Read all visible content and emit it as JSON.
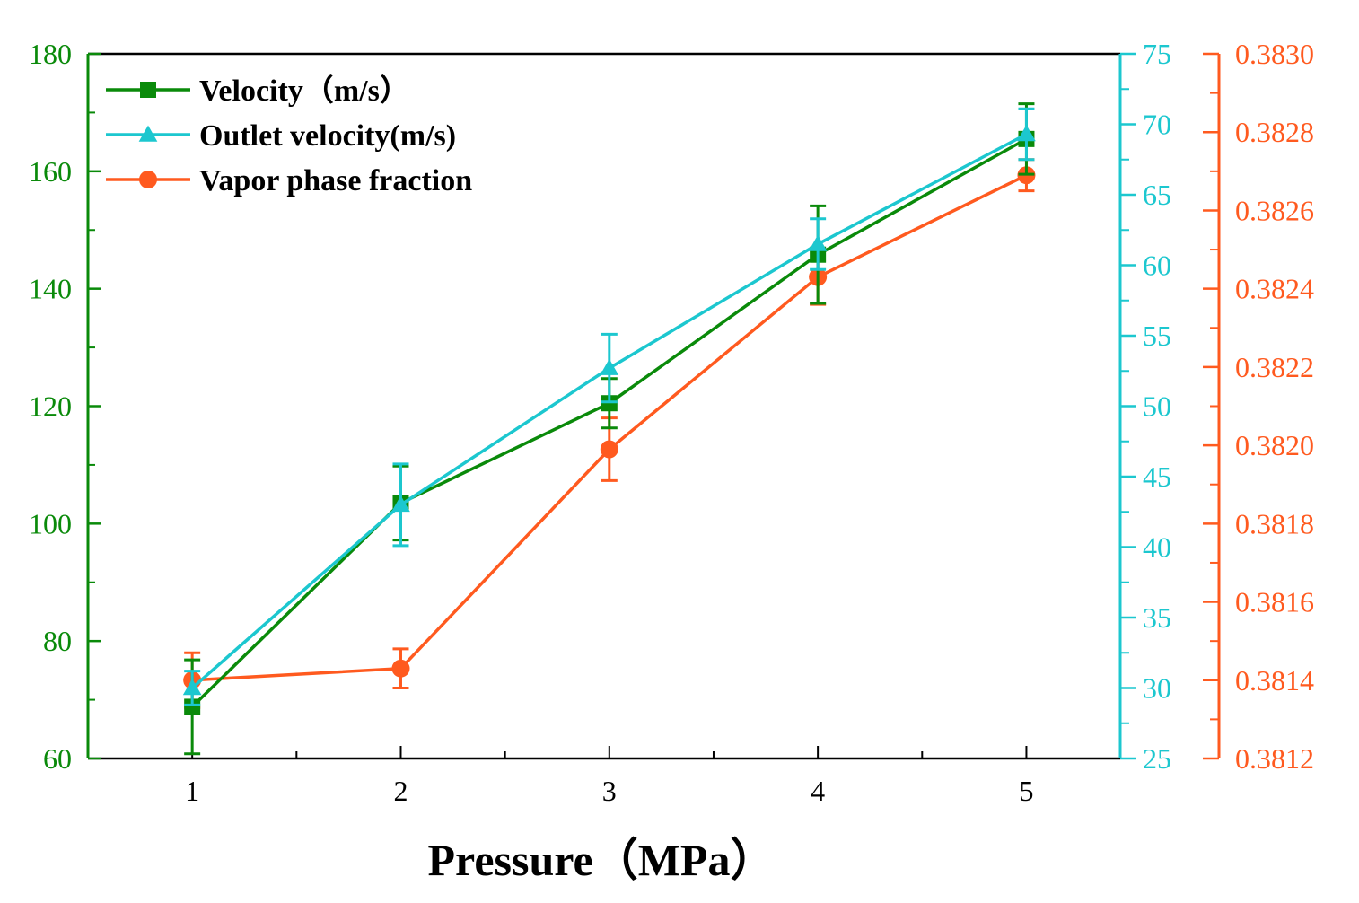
{
  "chart_data": {
    "type": "line",
    "title": "",
    "xlabel": "Pressure（MPa）",
    "x": [
      1,
      2,
      3,
      4,
      5
    ],
    "xlim": [
      0.5,
      5.45
    ],
    "x_ticks": [
      "1",
      "2",
      "3",
      "4",
      "5"
    ],
    "series": [
      {
        "name": "Velocity（m/s）",
        "axis": "left",
        "marker": "square",
        "color": "#0a8a0a",
        "values": [
          68.8,
          103.5,
          120.5,
          145.8,
          165.5
        ],
        "error": [
          8.0,
          6.3,
          4.2,
          8.3,
          6.0
        ]
      },
      {
        "name": "Outlet velocity(m/s)",
        "axis": "right1",
        "marker": "triangle",
        "color": "#1cc7cf",
        "values": [
          30.0,
          43.0,
          52.7,
          61.5,
          69.3
        ],
        "error": [
          1.2,
          2.9,
          2.4,
          1.8,
          1.8
        ]
      },
      {
        "name": "Vapor phase fraction",
        "axis": "right2",
        "marker": "circle",
        "color": "#ff5a1f",
        "values": [
          0.3814,
          0.38143,
          0.38199,
          0.38243,
          0.38269
        ],
        "error": [
          7e-05,
          5e-05,
          8e-05,
          7e-05,
          4e-05
        ]
      }
    ],
    "axes": {
      "left": {
        "ylim": [
          60,
          180
        ],
        "ticks": [
          "60",
          "80",
          "100",
          "120",
          "140",
          "160",
          "180"
        ],
        "color": "#0a8a0a"
      },
      "right1": {
        "ylim": [
          25,
          75
        ],
        "ticks": [
          "25",
          "30",
          "35",
          "40",
          "45",
          "50",
          "55",
          "60",
          "65",
          "70",
          "75"
        ],
        "color": "#1cc7cf"
      },
      "right2": {
        "ylim": [
          0.3812,
          0.383
        ],
        "ticks": [
          "0.3812",
          "0.3814",
          "0.3816",
          "0.3818",
          "0.3820",
          "0.3822",
          "0.3824",
          "0.3826",
          "0.3828",
          "0.3830"
        ],
        "color": "#ff5a1f"
      }
    },
    "legend": "top-left",
    "grid": false
  }
}
